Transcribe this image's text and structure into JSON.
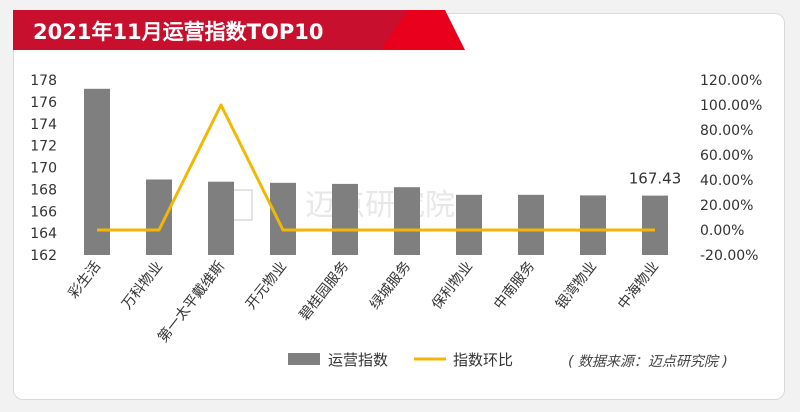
{
  "chart_data": {
    "type": "bar",
    "title": "2021年11月运营指数TOP10",
    "categories": [
      "彩生活",
      "万科物业",
      "第一太平戴维斯",
      "开元物业",
      "碧桂园服务",
      "绿城服务",
      "保利物业",
      "中南服务",
      "银湾物业",
      "中海物业"
    ],
    "series": [
      {
        "name": "运营指数",
        "type": "bar",
        "axis": "left",
        "values": [
          177.2,
          168.9,
          168.7,
          168.6,
          168.5,
          168.2,
          167.5,
          167.5,
          167.45,
          167.43
        ]
      },
      {
        "name": "指数环比",
        "type": "line",
        "axis": "right",
        "unit": "%",
        "values": [
          0,
          0,
          100,
          0,
          0,
          0,
          0,
          0,
          0,
          0
        ]
      }
    ],
    "y_left": {
      "min": 162,
      "max": 178,
      "step": 2,
      "ticks": [
        "162",
        "164",
        "166",
        "168",
        "170",
        "172",
        "174",
        "176",
        "178"
      ]
    },
    "y_right": {
      "min": -20,
      "max": 120,
      "step": 20,
      "ticks": [
        "-20.00%",
        "0.00%",
        "20.00%",
        "40.00%",
        "60.00%",
        "80.00%",
        "100.00%",
        "120.00%"
      ]
    },
    "data_labels": [
      {
        "index": 9,
        "text": "167.43"
      }
    ],
    "legend": {
      "placement": "bottom"
    },
    "grid": false,
    "source_note": "( 数据来源：迈点研究院 )",
    "watermark": "迈点研究院",
    "colors": {
      "bar": "#7f7f7f",
      "line": "#f2b705",
      "banner": "#c8102e",
      "banner_stripe": "#e8001c"
    }
  }
}
